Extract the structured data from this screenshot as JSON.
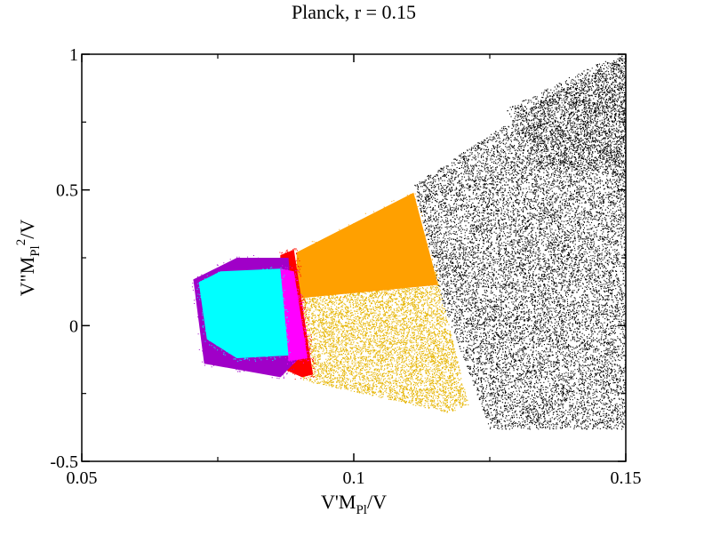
{
  "chart_data": {
    "type": "scatter",
    "title": "Planck, r = 0.15",
    "xlabel": {
      "base": "V'M",
      "sub": "Pl",
      "tail": "/V"
    },
    "ylabel": {
      "base": "V\"M",
      "sub": "Pl",
      "sup": "2",
      "tail": "/V"
    },
    "xlim": [
      0.05,
      0.15
    ],
    "ylim": [
      -0.5,
      1
    ],
    "x_ticks": [
      {
        "value": 0.05,
        "label": "0.05"
      },
      {
        "value": 0.1,
        "label": "0.1"
      },
      {
        "value": 0.15,
        "label": "0.15"
      }
    ],
    "y_ticks": [
      {
        "value": -0.5,
        "label": "-0.5"
      },
      {
        "value": 0,
        "label": "0"
      },
      {
        "value": 0.5,
        "label": "0.5"
      },
      {
        "value": 1,
        "label": "1"
      }
    ],
    "grid": false,
    "legend": "none",
    "series": [
      {
        "color": "#000000",
        "style": "sparse-dots",
        "density": 0.55,
        "region": [
          [
            0.111,
            0.52
          ],
          [
            0.136,
            0.85
          ],
          [
            0.15,
            1.0
          ],
          [
            0.15,
            -0.38
          ],
          [
            0.125,
            -0.38
          ],
          [
            0.116,
            0.1
          ]
        ]
      },
      {
        "color": "#000000",
        "style": "dense-dots",
        "density": 0.35,
        "region": [
          [
            0.128,
            0.8
          ],
          [
            0.144,
            0.96
          ],
          [
            0.15,
            1.0
          ],
          [
            0.15,
            0.55
          ],
          [
            0.133,
            0.6
          ]
        ]
      },
      {
        "color": "#e6b400",
        "style": "dots",
        "density": 0.9,
        "region": [
          [
            0.0895,
            0.23
          ],
          [
            0.115,
            0.2
          ],
          [
            0.121,
            -0.29
          ],
          [
            0.1175,
            -0.32
          ],
          [
            0.0905,
            -0.2
          ]
        ]
      },
      {
        "color": "#ffa000",
        "style": "filled",
        "region": [
          [
            0.0895,
            0.27
          ],
          [
            0.111,
            0.49
          ],
          [
            0.1155,
            0.15
          ],
          [
            0.1,
            0.12
          ],
          [
            0.0895,
            0.1
          ]
        ]
      },
      {
        "color": "#ff0000",
        "style": "filled",
        "region": [
          [
            0.0865,
            0.26
          ],
          [
            0.089,
            0.28
          ],
          [
            0.0925,
            -0.18
          ],
          [
            0.0905,
            -0.19
          ],
          [
            0.086,
            -0.15
          ]
        ]
      },
      {
        "color": "#a000c8",
        "style": "filled",
        "region": [
          [
            0.0705,
            0.17
          ],
          [
            0.0785,
            0.25
          ],
          [
            0.088,
            0.25
          ],
          [
            0.0895,
            -0.13
          ],
          [
            0.0865,
            -0.19
          ],
          [
            0.0725,
            -0.14
          ]
        ]
      },
      {
        "color": "#ff00ff",
        "style": "filled",
        "region": [
          [
            0.0865,
            0.21
          ],
          [
            0.089,
            0.2
          ],
          [
            0.0915,
            -0.12
          ],
          [
            0.088,
            -0.13
          ]
        ]
      },
      {
        "color": "#00ffff",
        "style": "filled",
        "region": [
          [
            0.0715,
            0.16
          ],
          [
            0.0755,
            0.2
          ],
          [
            0.0865,
            0.21
          ],
          [
            0.088,
            -0.11
          ],
          [
            0.0785,
            -0.12
          ],
          [
            0.073,
            -0.05
          ]
        ]
      }
    ]
  }
}
